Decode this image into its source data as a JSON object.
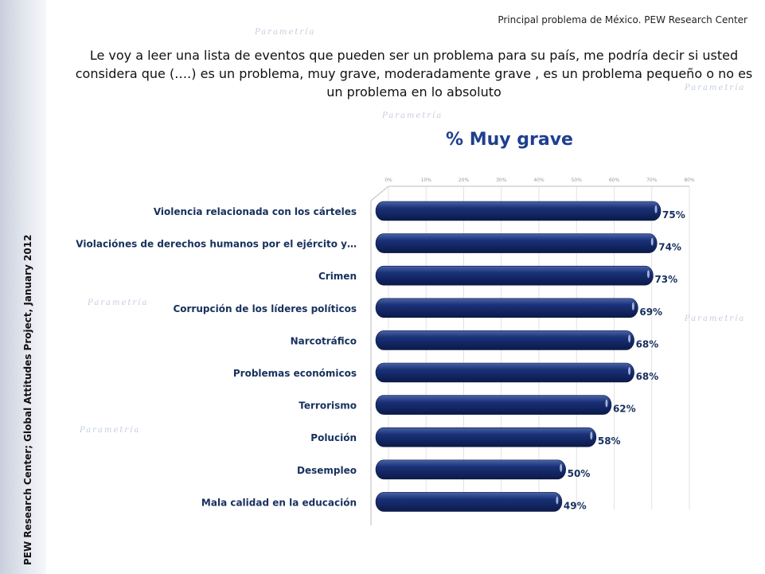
{
  "header": "Principal problema de México. PEW Research Center",
  "question": "Le voy a leer una lista de eventos que pueden ser un problema para su país, me podría decir si usted considera que (….) es un problema, muy grave, moderadamente grave , es un problema pequeño o no es un problema en lo absoluto",
  "side_note": "PEW Research Center; Global Attitudes Project, January 2012",
  "watermark": "Parametría",
  "chart_data": {
    "type": "bar",
    "orientation": "horizontal",
    "title": "% Muy grave",
    "categories": [
      "Violencia relacionada con los cárteles",
      "Violaciónes de derechos humanos por el ejército y…",
      "Crimen",
      "Corrupción de los líderes políticos",
      "Narcotráfico",
      "Problemas económicos",
      "Terrorismo",
      "Polución",
      "Desempleo",
      "Mala calidad en la educación"
    ],
    "values": [
      75,
      74,
      73,
      69,
      68,
      68,
      62,
      58,
      50,
      49
    ],
    "value_labels": [
      "75%",
      "74%",
      "73%",
      "69%",
      "68%",
      "68%",
      "62%",
      "58%",
      "50%",
      "49%"
    ],
    "xticks": [
      "0%",
      "10%",
      "20%",
      "30%",
      "40%",
      "50%",
      "60%",
      "70%",
      "80%"
    ],
    "xlim": [
      0,
      80
    ],
    "bar_color": "#14296b"
  }
}
